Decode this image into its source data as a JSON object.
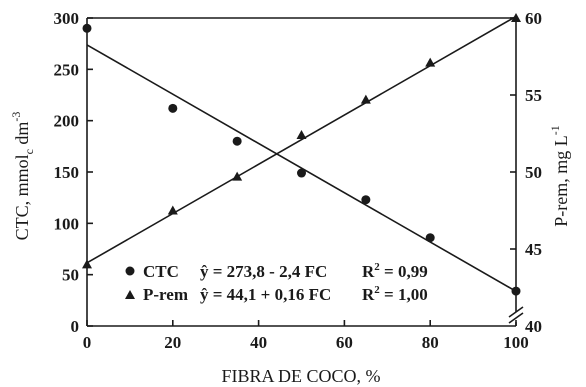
{
  "chart_data": {
    "type": "scatter",
    "xlabel": "FIBRA DE COCO, %",
    "ylabel_left": "CTC, mmol",
    "ylabel_left_sub": "c",
    "ylabel_left_unit": " dm",
    "ylabel_left_sup": "-3",
    "ylabel_right": "P-rem, mg L",
    "ylabel_right_sup": "-1",
    "xlim": [
      0,
      100
    ],
    "ylim_left": [
      0,
      300
    ],
    "ylim_right": [
      40,
      60
    ],
    "right_axis_break": true,
    "x_ticks": [
      "0",
      "20",
      "40",
      "60",
      "80",
      "100"
    ],
    "y_left_ticks": [
      "0",
      "50",
      "100",
      "150",
      "200",
      "250",
      "300"
    ],
    "y_right_ticks": [
      "40",
      "45",
      "50",
      "55",
      "60"
    ],
    "series": [
      {
        "name": "CTC",
        "axis": "left",
        "marker": "circle",
        "x": [
          0,
          20,
          35,
          50,
          65,
          80,
          100
        ],
        "y": [
          290,
          212,
          180,
          149,
          123,
          86,
          34
        ],
        "fit": {
          "intercept": 273.8,
          "slope": -2.4
        },
        "equation": "ŷ = 273,8 - 2,4 FC",
        "r2_label": "R",
        "r2_sup": "2",
        "r2_value": " = 0,99"
      },
      {
        "name": "P-rem",
        "axis": "right",
        "marker": "triangle",
        "x": [
          0,
          20,
          35,
          50,
          65,
          80,
          100
        ],
        "y": [
          44,
          47.5,
          49.7,
          52.4,
          54.7,
          57.1,
          60
        ],
        "fit": {
          "intercept": 44.1,
          "slope": 0.16
        },
        "equation": "ŷ = 44,1 + 0,16 FC",
        "r2_label": "R",
        "r2_sup": "2",
        "r2_value": " = 1,00"
      }
    ]
  }
}
